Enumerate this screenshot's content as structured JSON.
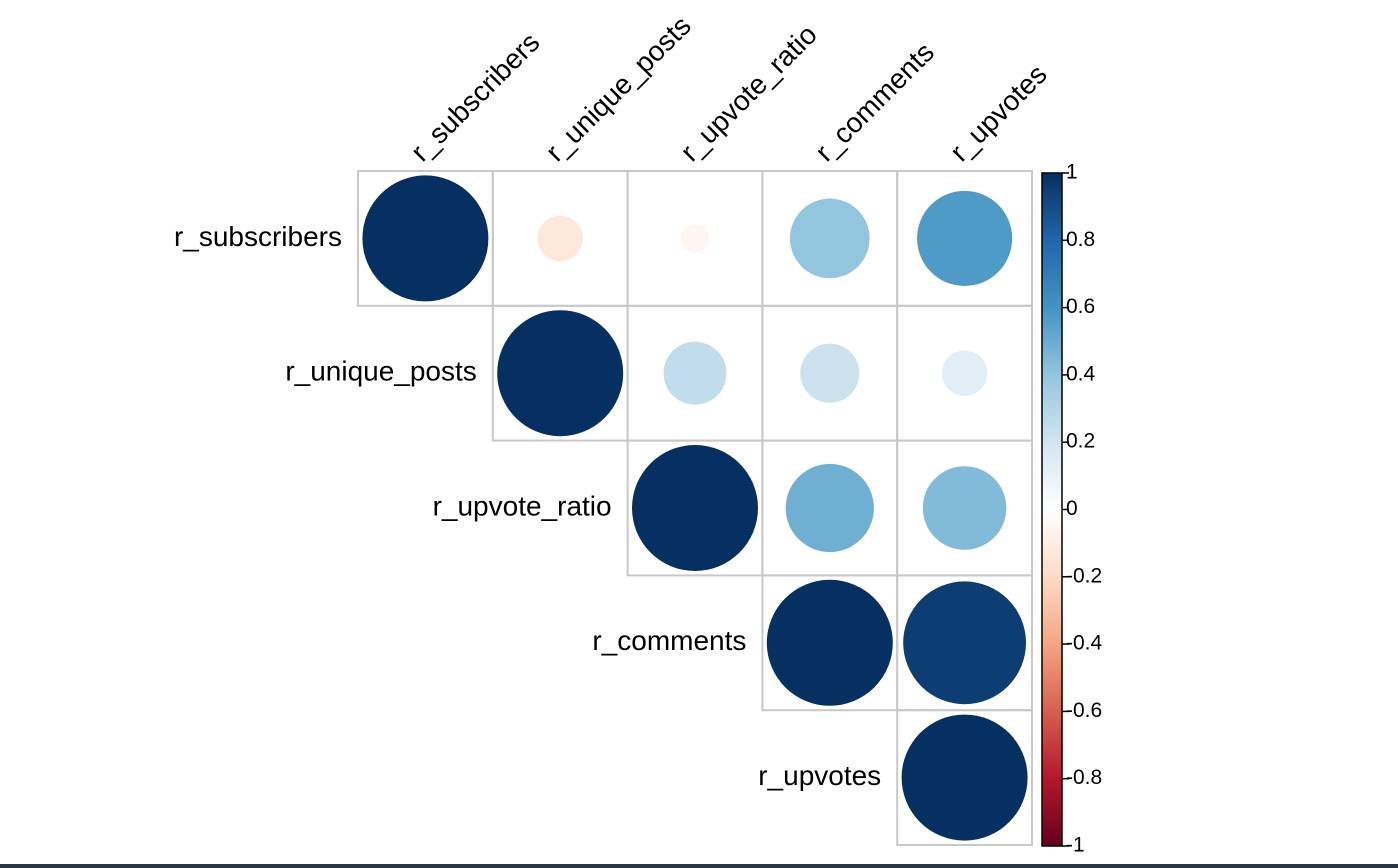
{
  "chart_data": {
    "type": "heatmap",
    "variables": [
      "r_subscribers",
      "r_unique_posts",
      "r_upvote_ratio",
      "r_comments",
      "r_upvotes"
    ],
    "correlations": [
      [
        1.0,
        -0.13,
        -0.05,
        0.4,
        0.57
      ],
      [
        null,
        1.0,
        0.25,
        0.22,
        0.13
      ],
      [
        null,
        null,
        1.0,
        0.49,
        0.44
      ],
      [
        null,
        null,
        null,
        1.0,
        0.95
      ],
      [
        null,
        null,
        null,
        null,
        1.0
      ]
    ],
    "layout": "upper-triangle",
    "glyph": "circle",
    "colorbar": {
      "min": -1,
      "max": 1,
      "ticks": [
        "1",
        "0.8",
        "0.6",
        "0.4",
        "0.2",
        "0",
        "-0.2",
        "-0.4",
        "-0.6",
        "-0.8",
        "-1"
      ],
      "tick_values": [
        1,
        0.8,
        0.6,
        0.4,
        0.2,
        0,
        -0.2,
        -0.4,
        -0.6,
        -0.8,
        -1
      ],
      "colors": [
        "#67001F",
        "#B2182B",
        "#D6604D",
        "#F4A582",
        "#FDDBC7",
        "#FFFFFF",
        "#D1E5F0",
        "#92C5DE",
        "#4393C3",
        "#2166AC",
        "#053061"
      ]
    },
    "title": "",
    "grid": true
  }
}
